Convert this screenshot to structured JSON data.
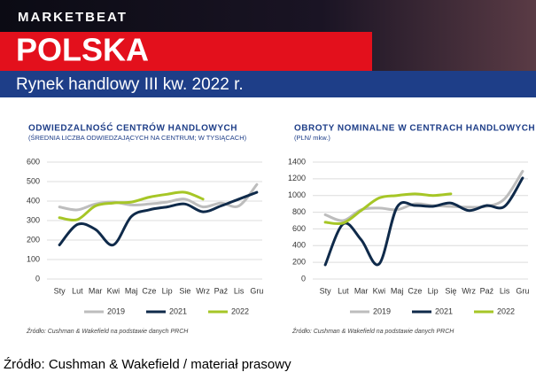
{
  "header": {
    "brand": "MARKETBEAT",
    "country": "POLSKA",
    "subtitle": "Rynek handlowy III kw. 2022 r."
  },
  "footer": "Źródło: Cushman & Wakefield / materiał prasowy",
  "chart_data": [
    {
      "type": "line",
      "title": "ODWIEDZALNOŚĆ CENTRÓW HANDLOWYCH",
      "subtitle": "(ŚREDNIA LICZBA ODWIEDZAJĄCYCH NA CENTRUM; W TYSIĄCACH)",
      "categories": [
        "Sty",
        "Lut",
        "Mar",
        "Kwi",
        "Maj",
        "Cze",
        "Lip",
        "Sie",
        "Wrz",
        "Paź",
        "Lis",
        "Gru"
      ],
      "series": [
        {
          "name": "2019",
          "color": "#bdbdbd",
          "values": [
            370,
            355,
            385,
            395,
            380,
            385,
            395,
            410,
            370,
            390,
            375,
            485
          ]
        },
        {
          "name": "2021",
          "color": "#0f2a4a",
          "values": [
            175,
            280,
            255,
            175,
            320,
            355,
            370,
            385,
            345,
            375,
            410,
            445
          ]
        },
        {
          "name": "2022",
          "color": "#a6c626",
          "values": [
            315,
            305,
            375,
            390,
            395,
            420,
            435,
            445,
            410,
            null,
            null,
            null
          ]
        }
      ],
      "ylim": [
        0,
        600
      ],
      "yticks": [
        0,
        100,
        200,
        300,
        400,
        500,
        600
      ],
      "grid": true,
      "source": "Źródło: Cushman & Wakefield na podstawie danych PRCH"
    },
    {
      "type": "line",
      "title": "OBROTY NOMINALNE W CENTRACH HANDLOWYCH",
      "subtitle": "(PLN/ mkw.)",
      "categories": [
        "Sty",
        "Lut",
        "Mar",
        "Kwi",
        "Maj",
        "Cze",
        "Lip",
        "Się",
        "Wrz",
        "Paź",
        "Lis",
        "Gru"
      ],
      "series": [
        {
          "name": "2019",
          "color": "#bdbdbd",
          "values": [
            770,
            700,
            830,
            850,
            830,
            900,
            880,
            870,
            860,
            870,
            960,
            1290
          ]
        },
        {
          "name": "2021",
          "color": "#0f2a4a",
          "values": [
            170,
            660,
            470,
            180,
            860,
            880,
            870,
            910,
            820,
            880,
            870,
            1210
          ]
        },
        {
          "name": "2022",
          "color": "#a6c626",
          "values": [
            680,
            670,
            820,
            970,
            1000,
            1020,
            1000,
            1020,
            null,
            null,
            null,
            null
          ]
        }
      ],
      "ylim": [
        0,
        1400
      ],
      "yticks": [
        0,
        200,
        400,
        600,
        800,
        1000,
        1200,
        1400
      ],
      "grid": true,
      "source": "Źródło: Cushman & Wakefield na podstawie danych PRCH"
    }
  ]
}
